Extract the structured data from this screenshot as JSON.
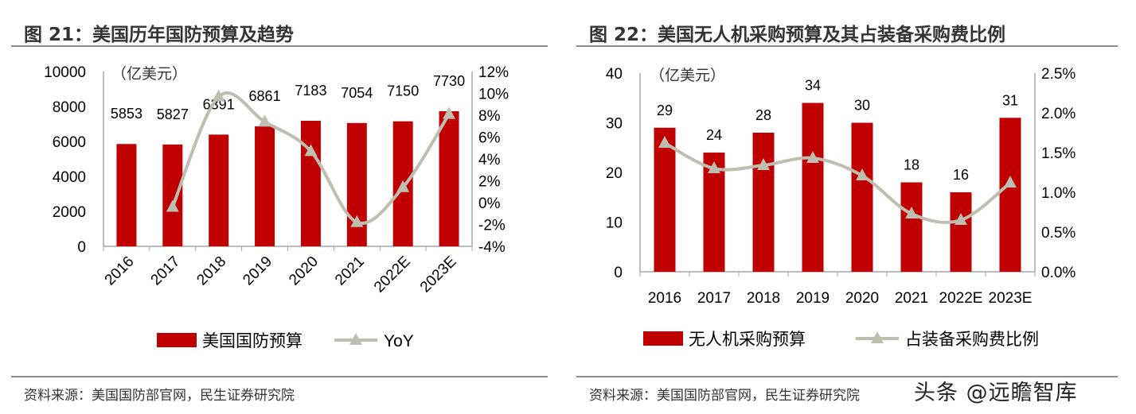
{
  "charts_meta": [
    {
      "title": "图 21：美国历年国防预算及趋势",
      "source": "资料来源：美国国防部官网，民生证券研究院"
    },
    {
      "title": "图 22：美国无人机采购预算及其占装备采购费比例",
      "source": "资料来源：美国国防部官网，民生证券研究院"
    }
  ],
  "watermark": "头条 @远瞻智库",
  "colors": {
    "bar": "#C00000",
    "line": "#BDBDB0",
    "axis": "#A6A6A6"
  },
  "chart_data": [
    {
      "type": "bar+line",
      "title": "图 21：美国历年国防预算及趋势",
      "unit_label": "（亿美元）",
      "categories": [
        "2016",
        "2017",
        "2018",
        "2019",
        "2020",
        "2021",
        "2022E",
        "2023E"
      ],
      "x_label_rotation": "rotated",
      "series": [
        {
          "name": "美国国防预算",
          "type": "bar",
          "axis": "left",
          "values": [
            5853,
            5827,
            6391,
            6861,
            7183,
            7054,
            7150,
            7730
          ]
        },
        {
          "name": "YoY",
          "type": "line",
          "axis": "right",
          "marker": "triangle",
          "values": [
            null,
            -0.4,
            9.7,
            7.4,
            4.7,
            -1.8,
            1.4,
            8.1
          ]
        }
      ],
      "left_axis": {
        "ylim": [
          0,
          10000
        ],
        "ticks": [
          "0",
          "2000",
          "4000",
          "6000",
          "8000",
          "10000"
        ]
      },
      "right_axis": {
        "ylim": [
          -4,
          12
        ],
        "ticks": [
          "-4%",
          "-2%",
          "0%",
          "2%",
          "4%",
          "6%",
          "8%",
          "10%",
          "12%"
        ]
      },
      "legend_position": "bottom",
      "grid": false
    },
    {
      "type": "bar+line",
      "title": "图 22：美国无人机采购预算及其占装备采购费比例",
      "unit_label": "（亿美元）",
      "categories": [
        "2016",
        "2017",
        "2018",
        "2019",
        "2020",
        "2021",
        "2022E",
        "2023E"
      ],
      "x_label_rotation": "horizontal",
      "series": [
        {
          "name": "无人机采购预算",
          "type": "bar",
          "axis": "left",
          "values": [
            29,
            24,
            28,
            34,
            30,
            18,
            16,
            31
          ]
        },
        {
          "name": "占装备采购费比例",
          "type": "line",
          "axis": "right",
          "marker": "triangle",
          "values": [
            1.62,
            1.3,
            1.34,
            1.43,
            1.21,
            0.73,
            0.65,
            1.12
          ]
        }
      ],
      "left_axis": {
        "ylim": [
          0,
          40
        ],
        "ticks": [
          "0",
          "10",
          "20",
          "30",
          "40"
        ]
      },
      "right_axis": {
        "ylim": [
          0,
          2.5
        ],
        "ticks": [
          "0.0%",
          "0.5%",
          "1.0%",
          "1.5%",
          "2.0%",
          "2.5%"
        ]
      },
      "legend_position": "bottom",
      "grid": false
    }
  ]
}
